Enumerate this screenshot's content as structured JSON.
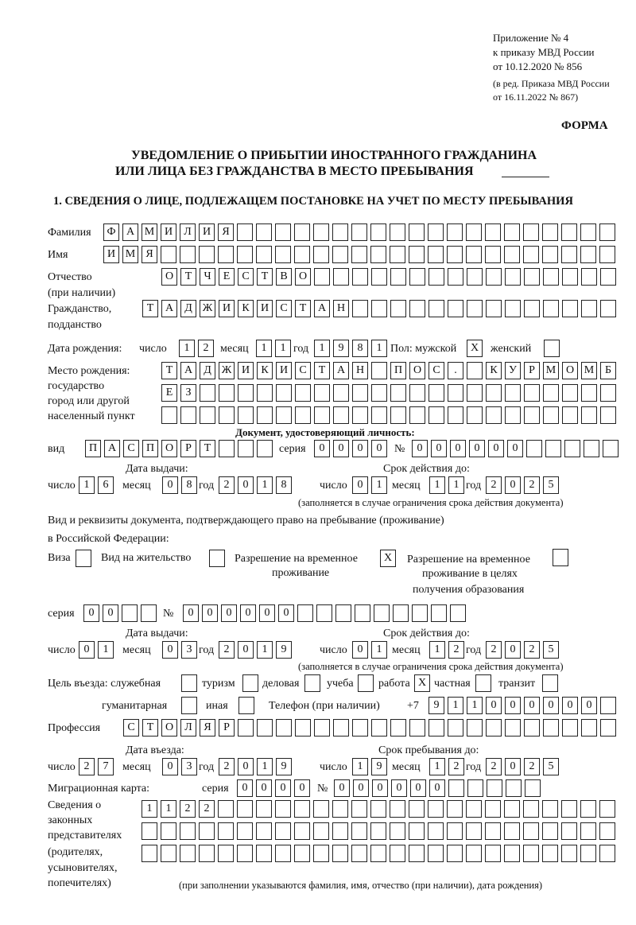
{
  "header": {
    "appendix": "Приложение № 4",
    "order": "к приказу МВД России",
    "order_date": "от 10.12.2020 № 856",
    "revision1": "(в ред. Приказа МВД России",
    "revision2": "от 16.11.2022 № 867)",
    "form_label": "ФОРМА",
    "title1": "УВЕДОМЛЕНИЕ О ПРИБЫТИИ ИНОСТРАННОГО ГРАЖДАНИНА",
    "title2": "ИЛИ ЛИЦА БЕЗ ГРАЖДАНСТВА В МЕСТО ПРЕБЫВАНИЯ",
    "section1": "1. СВЕДЕНИЯ О ЛИЦЕ, ПОДЛЕЖАЩЕМ ПОСТАНОВКЕ НА УЧЕТ ПО МЕСТУ ПРЕБЫВАНИЯ"
  },
  "person": {
    "surname_label": "Фамилия",
    "surname": "ФАМИЛИЯ",
    "name_label": "Имя",
    "name": "ИМЯ",
    "patronymic_label1": "Отчество",
    "patronymic_label2": "(при наличии)",
    "patronymic": "ОТЧЕСТВО",
    "citizenship_label1": "Гражданство,",
    "citizenship_label2": "подданство",
    "citizenship": "ТАДЖИКИСТАН",
    "birth_label": "Дата рождения:",
    "day_label": "число",
    "month_label": "месяц",
    "year_label": "год",
    "birth_day": "12",
    "birth_month": "11",
    "birth_year": "1981",
    "sex_label": "Пол: мужской",
    "male": "X",
    "female_label": "женский",
    "female": "",
    "birthplace_label1": "Место рождения:",
    "birthplace_label2": "государство",
    "birthplace_label3": "город или другой",
    "birthplace_label4": "населенный пункт",
    "birthplace_row1": [
      "Т",
      "А",
      "Д",
      "Ж",
      "И",
      "К",
      "И",
      "С",
      "Т",
      "А",
      "Н",
      "",
      "П",
      "О",
      "С",
      ".",
      "",
      "К",
      "У",
      "Р",
      "М",
      "О",
      "М",
      "Б"
    ],
    "birthplace_row2": "ЕЗ",
    "birthplace_row3": ""
  },
  "id_document": {
    "heading": "Документ, удостоверяющий личность:",
    "kind_label": "вид",
    "kind": "ПАСПОРТ",
    "series_label": "серия",
    "series": "0000",
    "number_label": "№",
    "number": "000000",
    "issue_label": "Дата выдачи:",
    "issue_day": "16",
    "issue_month": "08",
    "issue_year": "2018",
    "valid_label": "Срок действия до:",
    "valid_day": "01",
    "valid_month": "11",
    "valid_year": "2025",
    "valid_note": "(заполняется в случае ограничения срока действия документа)"
  },
  "stay_document": {
    "heading1": "Вид и реквизиты документа, подтверждающего право на пребывание (проживание)",
    "heading2": "в Российской Федерации:",
    "visa_label": "Виза",
    "visa": "",
    "residence_label": "Вид на жительство",
    "residence": "",
    "temp_label1": "Разрешение на временное",
    "temp_label2": "проживание",
    "temp": "X",
    "edu_label1": "Разрешение на временное",
    "edu_label2": "проживание в целях",
    "edu_label3": "получения образования",
    "edu": "",
    "series_label": "серия",
    "series": "00",
    "number_label": "№",
    "number": "000000",
    "issue_label": "Дата выдачи:",
    "issue_day": "01",
    "issue_month": "03",
    "issue_year": "2019",
    "valid_label": "Срок действия до:",
    "valid_day": "01",
    "valid_month": "12",
    "valid_year": "2025",
    "valid_note": "(заполняется в случае ограничения срока действия документа)"
  },
  "purpose": {
    "label": "Цель въезда: служебная",
    "service": "",
    "tourism_label": "туризм",
    "tourism": "",
    "business_label": "деловая",
    "business": "",
    "study_label": "учеба",
    "study": "",
    "work_label": "работа",
    "work": "X",
    "private_label": "частная",
    "private": "",
    "transit_label": "транзит",
    "transit": "",
    "humanitarian_label": "гуманитарная",
    "humanitarian": "",
    "other_label": "иная",
    "other": ""
  },
  "phone": {
    "label": "Телефон (при наличии)",
    "prefix": "+7",
    "number": "911000000"
  },
  "profession": {
    "label": "Профессия",
    "value": "СТОЛЯР"
  },
  "entry": {
    "entry_label": "Дата въезда:",
    "entry_day": "27",
    "entry_month": "03",
    "entry_year": "2019",
    "stay_label": "Срок пребывания до:",
    "stay_day": "19",
    "stay_month": "12",
    "stay_year": "2025"
  },
  "migration_card": {
    "label": "Миграционная карта:",
    "series_label": "серия",
    "series": "0000",
    "number_label": "№",
    "number": "000000"
  },
  "representatives": {
    "label1": "Сведения о",
    "label2": "законных",
    "label3": "представителях",
    "label4": "(родителях,",
    "label5": "усыновителях,",
    "label6": "попечителях)",
    "row1": "1122",
    "row2": "",
    "row3": "",
    "note": "(при заполнении указываются фамилия, имя, отчество (при наличии), дата рождения)"
  }
}
